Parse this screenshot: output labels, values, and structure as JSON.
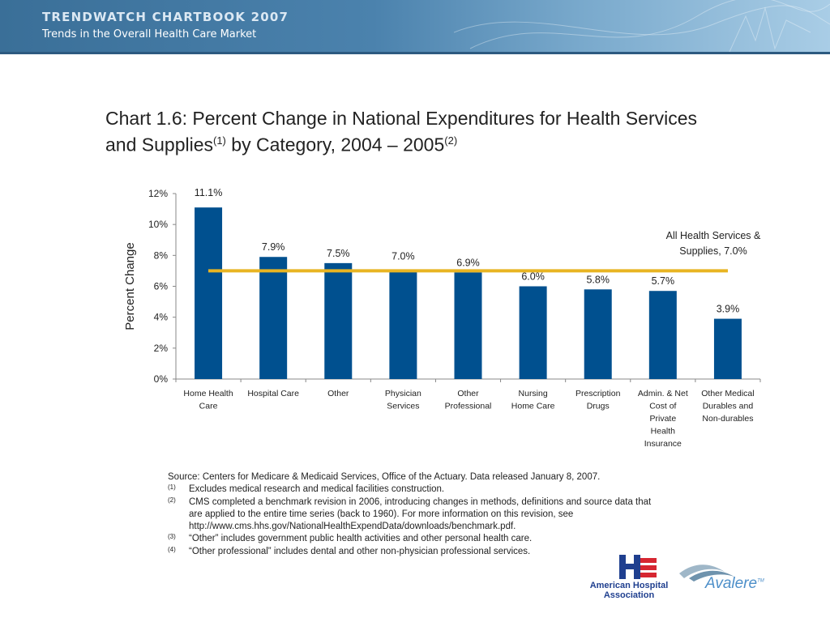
{
  "header": {
    "title": "TRENDWATCH CHARTBOOK 2007",
    "subtitle": "Trends in the Overall Health Care Market"
  },
  "title": {
    "line1": "Chart 1.6: Percent Change in National Expenditures for Health Services",
    "line2_a": "and Supplies",
    "sup1": "(1)",
    "line2_b": " by Category, 2004 – 2005",
    "sup2": "(2)"
  },
  "chart_data": {
    "type": "bar",
    "ylabel": "Percent Change",
    "xlabel": "",
    "ylim": [
      0,
      12
    ],
    "yticks": [
      "0%",
      "2%",
      "4%",
      "6%",
      "8%",
      "10%",
      "12%"
    ],
    "categories": [
      [
        "Home Health",
        "Care"
      ],
      [
        "Hospital Care"
      ],
      [
        "Other"
      ],
      [
        "Physician",
        "Services"
      ],
      [
        "Other",
        "Professional"
      ],
      [
        "Nursing",
        "Home Care"
      ],
      [
        "Prescription",
        "Drugs"
      ],
      [
        "Admin. & Net",
        "Cost of",
        "Private",
        "Health",
        "Insurance"
      ],
      [
        "Other Medical",
        "Durables and",
        "Non-durables"
      ]
    ],
    "values": [
      11.1,
      7.9,
      7.5,
      7.0,
      6.9,
      6.0,
      5.8,
      5.7,
      3.9
    ],
    "value_labels": [
      "11.1%",
      "7.9%",
      "7.5%",
      "7.0%",
      "6.9%",
      "6.0%",
      "5.8%",
      "5.7%",
      "3.9%"
    ],
    "reference_line": {
      "value": 7.0,
      "label_lines": [
        "All Health Services &",
        "Supplies, 7.0%"
      ]
    },
    "grid": false,
    "legend": "none",
    "colors": {
      "bar": "#00508f",
      "reference": "#e8b422"
    }
  },
  "source": {
    "text": "Source: Centers for Medicare & Medicaid Services, Office of the Actuary.  Data released January 8, 2007.",
    "notes": [
      {
        "mark": "(1)",
        "lines": [
          "Excludes medical research and medical facilities construction."
        ]
      },
      {
        "mark": "(2)",
        "lines": [
          "CMS completed a benchmark revision in 2006, introducing changes in methods, definitions and source data that",
          "are applied to the entire time series (back to 1960).  For more information on this revision, see",
          "http://www.cms.hhs.gov/NationalHealthExpendData/downloads/benchmark.pdf."
        ]
      },
      {
        "mark": "(3)",
        "lines": [
          "“Other” includes government public health activities and other personal health care."
        ]
      },
      {
        "mark": "(4)",
        "lines": [
          "“Other professional” includes dental and other non-physician professional services."
        ]
      }
    ]
  },
  "logos": {
    "aha": "American Hospital Association",
    "aha_line1": "American Hospital",
    "aha_line2": "Association",
    "avalere": "Avalere",
    "avalere_tm": "TM"
  }
}
